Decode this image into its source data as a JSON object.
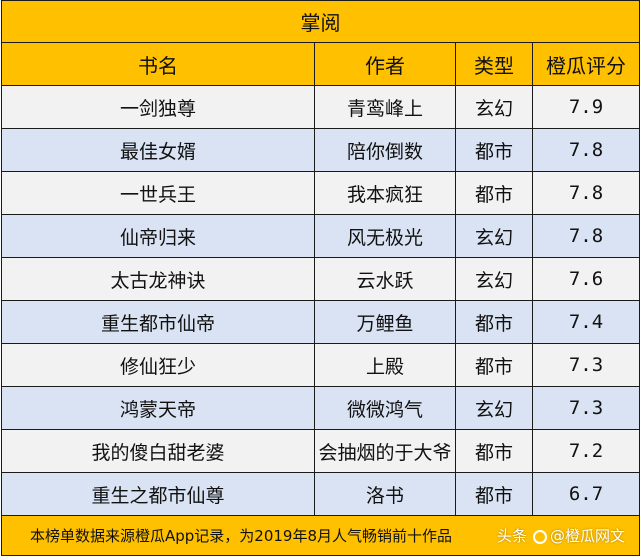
{
  "table": {
    "title": "掌阅",
    "headers": [
      "书名",
      "作者",
      "类型",
      "橙瓜评分"
    ],
    "rows": [
      {
        "book": "一剑独尊",
        "author": "青鸾峰上",
        "genre": "玄幻",
        "score": "7.9"
      },
      {
        "book": "最佳女婿",
        "author": "陪你倒数",
        "genre": "都市",
        "score": "7.8"
      },
      {
        "book": "一世兵王",
        "author": "我本疯狂",
        "genre": "都市",
        "score": "7.8"
      },
      {
        "book": "仙帝归来",
        "author": "风无极光",
        "genre": "玄幻",
        "score": "7.8"
      },
      {
        "book": "太古龙神诀",
        "author": "云水跃",
        "genre": "玄幻",
        "score": "7.6"
      },
      {
        "book": "重生都市仙帝",
        "author": "万鲤鱼",
        "genre": "都市",
        "score": "7.4"
      },
      {
        "book": "修仙狂少",
        "author": "上殿",
        "genre": "都市",
        "score": "7.3"
      },
      {
        "book": "鸿蒙天帝",
        "author": "微微鸿气",
        "genre": "玄幻",
        "score": "7.3"
      },
      {
        "book": "我的傻白甜老婆",
        "author": "会抽烟的于大爷",
        "genre": "都市",
        "score": "7.2"
      },
      {
        "book": "重生之都市仙尊",
        "author": "洛书",
        "genre": "都市",
        "score": "6.7"
      }
    ],
    "footnote": "本榜单数据来源橙瓜App记录，为2019年8月人气畅销前十作品"
  },
  "watermark": {
    "prefix": "头条",
    "name": "@橙瓜网文"
  },
  "colors": {
    "header_bg": "#ffc000",
    "row_light": "#f2f2f2",
    "row_blue": "#dae3f3"
  }
}
